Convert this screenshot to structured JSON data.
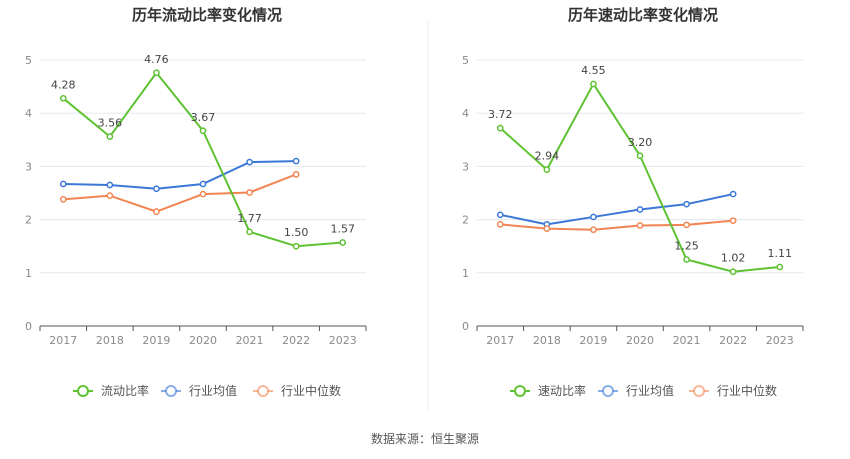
{
  "source_text": "数据来源：恒生聚源",
  "chart_data": [
    {
      "type": "line",
      "title": "历年流动比率变化情况",
      "categories": [
        "2017",
        "2018",
        "2019",
        "2020",
        "2021",
        "2022",
        "2023"
      ],
      "ylim": [
        0,
        5
      ],
      "yticks": [
        0,
        1,
        2,
        3,
        4,
        5
      ],
      "xlabel": "",
      "ylabel": "",
      "grid": true,
      "legend_position": "bottom-center",
      "series": [
        {
          "name": "流动比率",
          "color": "#5ec233",
          "values": [
            4.28,
            3.56,
            4.76,
            3.67,
            1.77,
            1.5,
            1.57
          ],
          "labels": [
            "4.28",
            "3.56",
            "4.76",
            "3.67",
            "1.77",
            "1.50",
            "1.57"
          ]
        },
        {
          "name": "行业均值",
          "color": "#3b77d6",
          "values": [
            2.67,
            2.65,
            2.58,
            2.67,
            3.08,
            3.1,
            null
          ]
        },
        {
          "name": "行业中位数",
          "color": "#f28552",
          "values": [
            2.38,
            2.45,
            2.15,
            2.48,
            2.51,
            2.85,
            null
          ]
        }
      ]
    },
    {
      "type": "line",
      "title": "历年速动比率变化情况",
      "categories": [
        "2017",
        "2018",
        "2019",
        "2020",
        "2021",
        "2022",
        "2023"
      ],
      "ylim": [
        0,
        5
      ],
      "yticks": [
        0,
        1,
        2,
        3,
        4,
        5
      ],
      "xlabel": "",
      "ylabel": "",
      "grid": true,
      "legend_position": "bottom-center",
      "series": [
        {
          "name": "速动比率",
          "color": "#5ec233",
          "values": [
            3.72,
            2.94,
            4.55,
            3.2,
            1.25,
            1.02,
            1.11
          ],
          "labels": [
            "3.72",
            "2.94",
            "4.55",
            "3.20",
            "1.25",
            "1.02",
            "1.11"
          ]
        },
        {
          "name": "行业均值",
          "color": "#3b77d6",
          "values": [
            2.09,
            1.91,
            2.05,
            2.19,
            2.29,
            2.48,
            null
          ]
        },
        {
          "name": "行业中位数",
          "color": "#f28552",
          "values": [
            1.91,
            1.83,
            1.81,
            1.89,
            1.9,
            1.98,
            null
          ]
        }
      ]
    }
  ]
}
